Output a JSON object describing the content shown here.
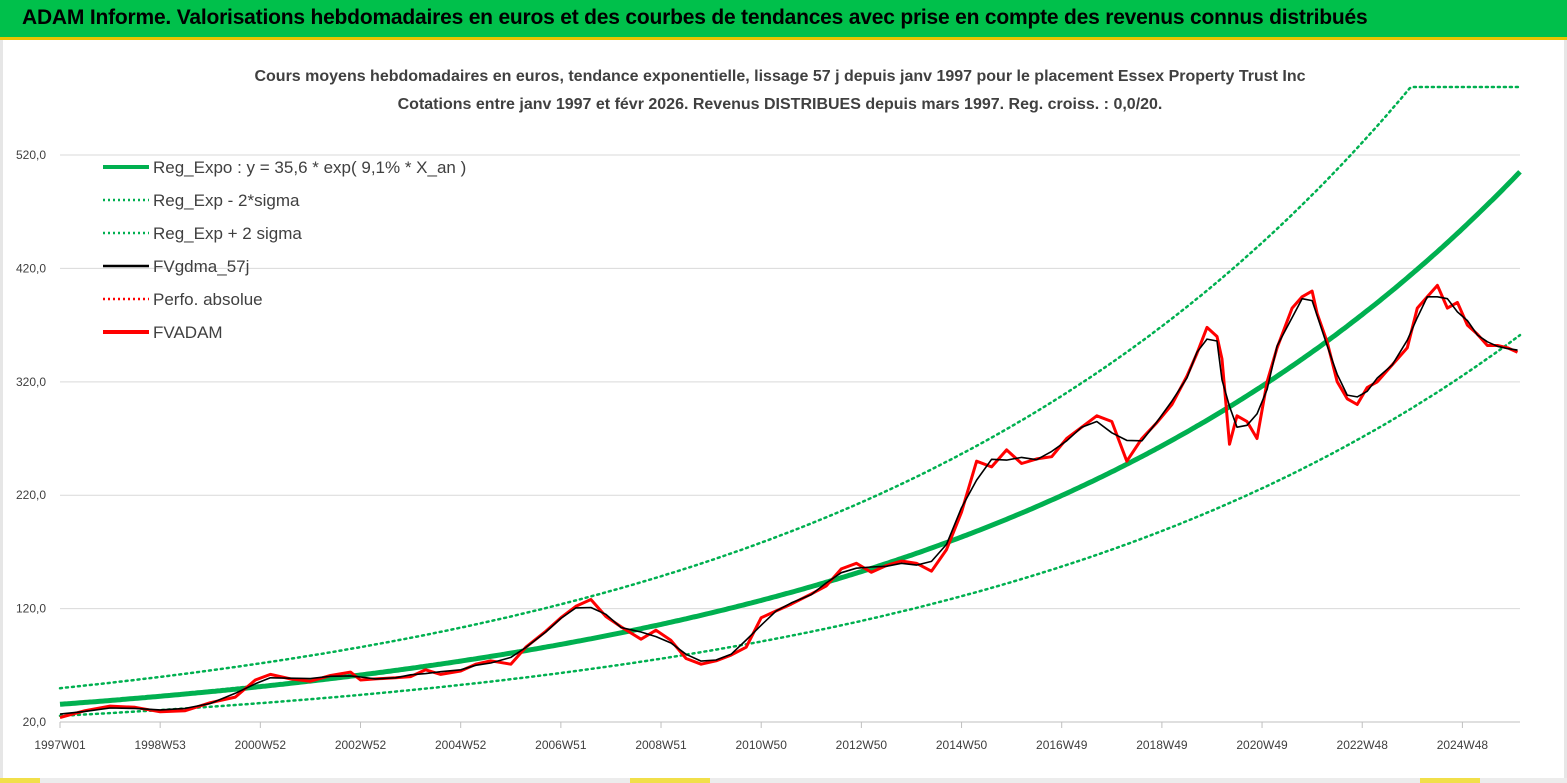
{
  "header": {
    "title": "ADAM Informe. Valorisations hebdomadaires en euros et des courbes de tendances avec prise en compte des revenus connus distribués"
  },
  "colors": {
    "banner": "#00c04b",
    "banner_border": "#e8c400",
    "reg_expo": "#00b050",
    "fvgdma": "#000000",
    "fvadam": "#ff0000",
    "perfo": "#ff0000",
    "grid": "#d9d9d9",
    "text": "#404040"
  },
  "chart_data": {
    "type": "line",
    "title": "Cours moyens hebdomadaires en euros, tendance exponentielle, lissage 57 j depuis janv 1997 pour le placement Essex Property Trust Inc",
    "subtitle": "Cotations entre janv 1997 et févr 2026. Revenus DISTRIBUES depuis mars 1997. Reg. croiss. : 0,0/20.",
    "xlabel": "",
    "ylabel": "",
    "ylim": [
      20,
      580
    ],
    "y_ticks": [
      "20,0",
      "120,0",
      "220,0",
      "320,0",
      "420,0",
      "520,0"
    ],
    "y_tick_values": [
      20,
      120,
      220,
      320,
      420,
      520
    ],
    "x_range": [
      1997.0,
      2026.15
    ],
    "x_ticks": [
      "1997W01",
      "1998W53",
      "2000W52",
      "2002W52",
      "2004W52",
      "2006W51",
      "2008W51",
      "2010W50",
      "2012W50",
      "2014W50",
      "2016W49",
      "2018W49",
      "2020W49",
      "2022W48",
      "2024W48"
    ],
    "x_tick_values": [
      1997.0,
      1999.0,
      2001.0,
      2003.0,
      2005.0,
      2007.0,
      2009.0,
      2011.0,
      2013.0,
      2015.0,
      2017.0,
      2019.0,
      2021.0,
      2023.0,
      2025.0
    ],
    "grid": "horizontal",
    "legend_position": "top-left",
    "regression": {
      "a": 35.6,
      "rate": 0.091,
      "cap": 580
    },
    "series": [
      {
        "name": "Reg_Expo : y = 35,6 * exp( 9,1% *  X_an )",
        "color": "#00b050",
        "style": "solid-thick",
        "kind": "reg"
      },
      {
        "name": "Reg_Exp - 2*sigma",
        "color": "#00b050",
        "style": "dotted",
        "kind": "reg_low",
        "factor": 0.715
      },
      {
        "name": "Reg_Exp + 2 sigma",
        "color": "#00b050",
        "style": "dotted",
        "kind": "reg_high",
        "factor": 1.4
      },
      {
        "name": "FVgdma_57j",
        "color": "#000000",
        "style": "solid",
        "kind": "smooth"
      },
      {
        "name": "Perfo. absolue",
        "color": "#ff0000",
        "style": "dotted",
        "kind": "legend-only"
      },
      {
        "name": "FVADAM",
        "color": "#ff0000",
        "style": "solid-thick",
        "kind": "price",
        "x": [
          1997.0,
          1997.5,
          1998.0,
          1998.5,
          1999.0,
          1999.5,
          2000.0,
          2000.5,
          2000.9,
          2001.2,
          2001.6,
          2002.0,
          2002.4,
          2002.8,
          2003.0,
          2003.3,
          2003.7,
          2004.0,
          2004.3,
          2004.6,
          2005.0,
          2005.3,
          2005.6,
          2006.0,
          2006.3,
          2006.7,
          2007.0,
          2007.3,
          2007.6,
          2007.9,
          2008.2,
          2008.6,
          2008.9,
          2009.2,
          2009.5,
          2009.8,
          2010.1,
          2010.4,
          2010.7,
          2011.0,
          2011.3,
          2011.6,
          2012.0,
          2012.3,
          2012.6,
          2012.9,
          2013.2,
          2013.5,
          2013.8,
          2014.1,
          2014.4,
          2014.7,
          2015.0,
          2015.3,
          2015.6,
          2015.9,
          2016.2,
          2016.5,
          2016.8,
          2017.1,
          2017.4,
          2017.7,
          2018.0,
          2018.3,
          2018.6,
          2018.9,
          2019.2,
          2019.5,
          2019.7,
          2019.9,
          2020.1,
          2020.2,
          2020.35,
          2020.5,
          2020.7,
          2020.9,
          2021.1,
          2021.3,
          2021.6,
          2021.8,
          2022.0,
          2022.1,
          2022.3,
          2022.5,
          2022.7,
          2022.9,
          2023.1,
          2023.3,
          2023.6,
          2023.9,
          2024.1,
          2024.3,
          2024.5,
          2024.7,
          2024.9,
          2025.1,
          2025.3,
          2025.5,
          2025.7,
          2025.9,
          2026.1
        ],
        "values": [
          24,
          30,
          34,
          33,
          29,
          30,
          37,
          42,
          57,
          62,
          58,
          56,
          61,
          64,
          57,
          58,
          59,
          60,
          66,
          62,
          65,
          71,
          74,
          71,
          86,
          100,
          112,
          122,
          128,
          113,
          104,
          93,
          101,
          92,
          76,
          71,
          74,
          79,
          86,
          112,
          118,
          124,
          133,
          140,
          155,
          160,
          152,
          158,
          162,
          160,
          153,
          172,
          205,
          250,
          245,
          260,
          248,
          252,
          254,
          270,
          280,
          290,
          285,
          250,
          270,
          284,
          300,
          325,
          345,
          368,
          360,
          340,
          265,
          290,
          285,
          270,
          320,
          350,
          385,
          395,
          400,
          380,
          355,
          320,
          305,
          300,
          315,
          320,
          335,
          350,
          385,
          395,
          405,
          385,
          390,
          370,
          362,
          352,
          352,
          350,
          346
        ]
      }
    ]
  }
}
